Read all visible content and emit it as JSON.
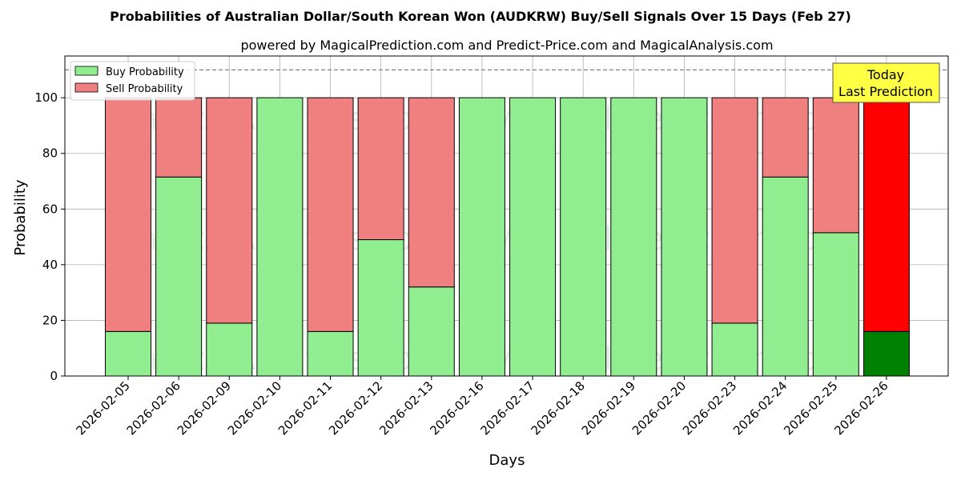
{
  "chart_data": {
    "type": "bar",
    "stacked": true,
    "title": "Probabilities of Australian Dollar/South Korean Won (AUDKRW) Buy/Sell Signals Over 15 Days (Feb 27)",
    "subtitle": "powered by MagicalPrediction.com and Predict-Price.com and MagicalAnalysis.com",
    "xlabel": "Days",
    "ylabel": "Probability",
    "ylim": [
      0,
      115
    ],
    "yticks": [
      0,
      20,
      40,
      60,
      80,
      100
    ],
    "reference_line": 110,
    "grid": true,
    "legend_position": "top-left",
    "categories": [
      "2026-02-05",
      "2026-02-06",
      "2026-02-09",
      "2026-02-10",
      "2026-02-11",
      "2026-02-12",
      "2026-02-13",
      "2026-02-16",
      "2026-02-17",
      "2026-02-18",
      "2026-02-19",
      "2026-02-20",
      "2026-02-23",
      "2026-02-24",
      "2026-02-25",
      "2026-02-26"
    ],
    "series": [
      {
        "name": "Buy Probability",
        "color": "#90ee90",
        "values": [
          16,
          71.5,
          19,
          100,
          16,
          49,
          32,
          100,
          100,
          100,
          100,
          100,
          19,
          71.5,
          51.5,
          16
        ]
      },
      {
        "name": "Sell Probability",
        "color": "#f08080",
        "values": [
          84,
          28.5,
          81,
          0,
          84,
          51,
          68,
          0,
          0,
          0,
          0,
          0,
          81,
          28.5,
          48.5,
          84
        ]
      }
    ],
    "highlight": {
      "index": 15,
      "buy_color": "#008000",
      "sell_color": "#ff0000"
    },
    "annotation": {
      "lines": [
        "Today",
        "Last Prediction"
      ],
      "background": "#ffff44"
    },
    "watermarks": [
      "MagicalAnalysis.com",
      "MagicalPrediction.com"
    ]
  }
}
